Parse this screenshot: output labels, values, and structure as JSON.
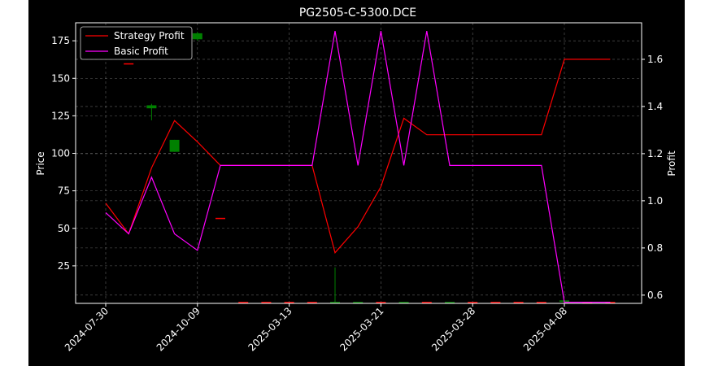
{
  "chart_data": {
    "type": "line",
    "title": "PG2505-C-5300.DCE",
    "ylabel": "Price",
    "y2label": "Profit",
    "x_tick_labels": [
      "2024-07-30",
      "2024-10-09",
      "2025-03-13",
      "2025-03-21",
      "2025-03-28",
      "2025-04-08"
    ],
    "price_axis": {
      "ylim": [
        0,
        187
      ],
      "ticks": [
        25,
        50,
        75,
        100,
        125,
        150,
        175
      ]
    },
    "profit_axis": {
      "ylim": [
        0.565,
        1.755
      ],
      "ticks": [
        0.6,
        0.8,
        1.0,
        1.2,
        1.4,
        1.6
      ],
      "tick_labels": [
        "0.6",
        "0.8",
        "1.0",
        "1.2",
        "1.4",
        "1.6"
      ]
    },
    "grid": true,
    "legend_position": "top-left",
    "series": [
      {
        "name": "Strategy Profit",
        "color": "#ff0000",
        "axis": "profit",
        "x_index": [
          0,
          1,
          2,
          3,
          4,
          5,
          6,
          7,
          8,
          9,
          10,
          11,
          12,
          13,
          14,
          15,
          16,
          17,
          18,
          19,
          20,
          21,
          22
        ],
        "values": [
          0.99,
          0.86,
          1.14,
          1.34,
          1.25,
          1.15,
          1.15,
          1.15,
          1.15,
          1.15,
          0.78,
          0.89,
          1.06,
          1.35,
          1.28,
          1.28,
          1.28,
          1.28,
          1.28,
          1.28,
          1.6,
          1.6,
          1.6
        ]
      },
      {
        "name": "Basic Profit",
        "color": "#ff00ff",
        "axis": "profit",
        "x_index": [
          0,
          1,
          2,
          3,
          4,
          5,
          6,
          7,
          8,
          9,
          10,
          11,
          12,
          13,
          14,
          15,
          16,
          17,
          18,
          19,
          20,
          21,
          22
        ],
        "values": [
          0.95,
          0.86,
          1.1,
          0.86,
          0.79,
          1.15,
          1.15,
          1.15,
          1.15,
          1.15,
          1.72,
          1.15,
          1.72,
          1.15,
          1.72,
          1.15,
          1.15,
          1.15,
          1.15,
          1.15,
          0.57,
          0.57,
          0.57
        ]
      }
    ],
    "candles": [
      {
        "x_index": 1,
        "open": 160,
        "close": 160,
        "high": 160,
        "low": 160,
        "color": "#ff0000"
      },
      {
        "x_index": 2,
        "open": 132,
        "close": 130,
        "high": 133,
        "low": 122,
        "color": "#008000"
      },
      {
        "x_index": 3,
        "open": 109,
        "close": 101,
        "high": 109,
        "low": 101,
        "color": "#008000"
      },
      {
        "x_index": 4,
        "open": 180,
        "close": 176,
        "high": 181,
        "low": 175,
        "color": "#008000"
      },
      {
        "x_index": 5,
        "open": 57,
        "close": 57,
        "high": 57,
        "low": 57,
        "color": "#ff0000"
      },
      {
        "x_index": 6,
        "open": 1,
        "close": 1,
        "high": 1,
        "low": 1,
        "color": "#ff0000"
      },
      {
        "x_index": 7,
        "open": 1,
        "close": 1,
        "high": 1,
        "low": 1,
        "color": "#ff0000"
      },
      {
        "x_index": 8,
        "open": 1,
        "close": 1,
        "high": 1,
        "low": 1,
        "color": "#ff0000"
      },
      {
        "x_index": 9,
        "open": 1,
        "close": 1,
        "high": 1,
        "low": 1,
        "color": "#ff0000"
      },
      {
        "x_index": 10,
        "open": 1,
        "close": 1,
        "high": 24,
        "low": 0,
        "color": "#008000"
      },
      {
        "x_index": 11,
        "open": 1,
        "close": 1,
        "high": 1,
        "low": 1,
        "color": "#008000"
      },
      {
        "x_index": 12,
        "open": 1,
        "close": 1,
        "high": 1,
        "low": 1,
        "color": "#ff0000"
      },
      {
        "x_index": 13,
        "open": 1,
        "close": 1,
        "high": 1,
        "low": 1,
        "color": "#008000"
      },
      {
        "x_index": 14,
        "open": 1,
        "close": 1,
        "high": 1,
        "low": 1,
        "color": "#ff0000"
      },
      {
        "x_index": 15,
        "open": 1,
        "close": 1,
        "high": 1,
        "low": 1,
        "color": "#008000"
      },
      {
        "x_index": 16,
        "open": 1,
        "close": 1,
        "high": 1,
        "low": 1,
        "color": "#ff0000"
      },
      {
        "x_index": 17,
        "open": 1,
        "close": 1,
        "high": 1,
        "low": 1,
        "color": "#ff0000"
      },
      {
        "x_index": 18,
        "open": 1,
        "close": 1,
        "high": 1,
        "low": 1,
        "color": "#ff0000"
      },
      {
        "x_index": 19,
        "open": 1,
        "close": 1,
        "high": 1,
        "low": 1,
        "color": "#ff0000"
      },
      {
        "x_index": 20,
        "open": 2,
        "close": 1,
        "high": 2,
        "low": 1,
        "color": "#008000"
      },
      {
        "x_index": 21,
        "open": 1,
        "close": 1,
        "high": 1,
        "low": 1,
        "color": "#ff0000"
      },
      {
        "x_index": 22,
        "open": 1,
        "close": 1,
        "high": 1,
        "low": 1,
        "color": "#ff0000"
      }
    ]
  }
}
